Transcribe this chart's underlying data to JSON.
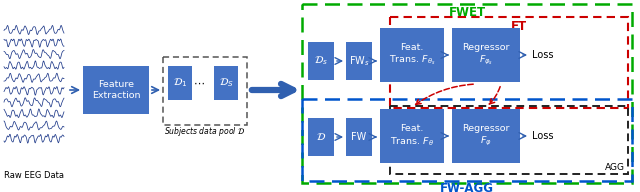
{
  "bg_color": "#ffffff",
  "box_color": "#4472C4",
  "box_text_color": "#ffffff",
  "arrow_color": "#3060B0",
  "red_arrow_color": "#CC0000",
  "green_border_color": "#00AA00",
  "red_border_color": "#CC0000",
  "blue_border_color": "#0055CC",
  "black_border_color": "#222222",
  "eeg_color": "#1F3A8A",
  "label_raw_eeg": "Raw EEG Data",
  "label_feat_extract": "Feature\nExtraction",
  "label_d1": "$\\mathcal{D}_1$",
  "label_ds_pool": "$\\mathcal{D}_S$",
  "label_pool": "Subjects data pool $\\mathcal{D}$",
  "label_ds": "$\\mathcal{D}_s$",
  "label_fws": "$\\mathrm{FW}_s$",
  "label_feat_trans_s": "Feat.\nTrans. $F_{\\theta_s}$",
  "label_regressor_s": "Regressor\n$F_{\\varphi_s}$",
  "label_loss_top": "Loss",
  "label_d": "$\\mathcal{D}$",
  "label_fw": "FW",
  "label_feat_trans": "Feat.\nTrans. $F_{\\theta}$",
  "label_regressor": "Regressor\n$F_{\\varphi}$",
  "label_loss_bot": "Loss",
  "label_fwet": "FWET",
  "label_et": "ET",
  "label_agg": "AGG",
  "label_fwagg": "FW-AGG"
}
